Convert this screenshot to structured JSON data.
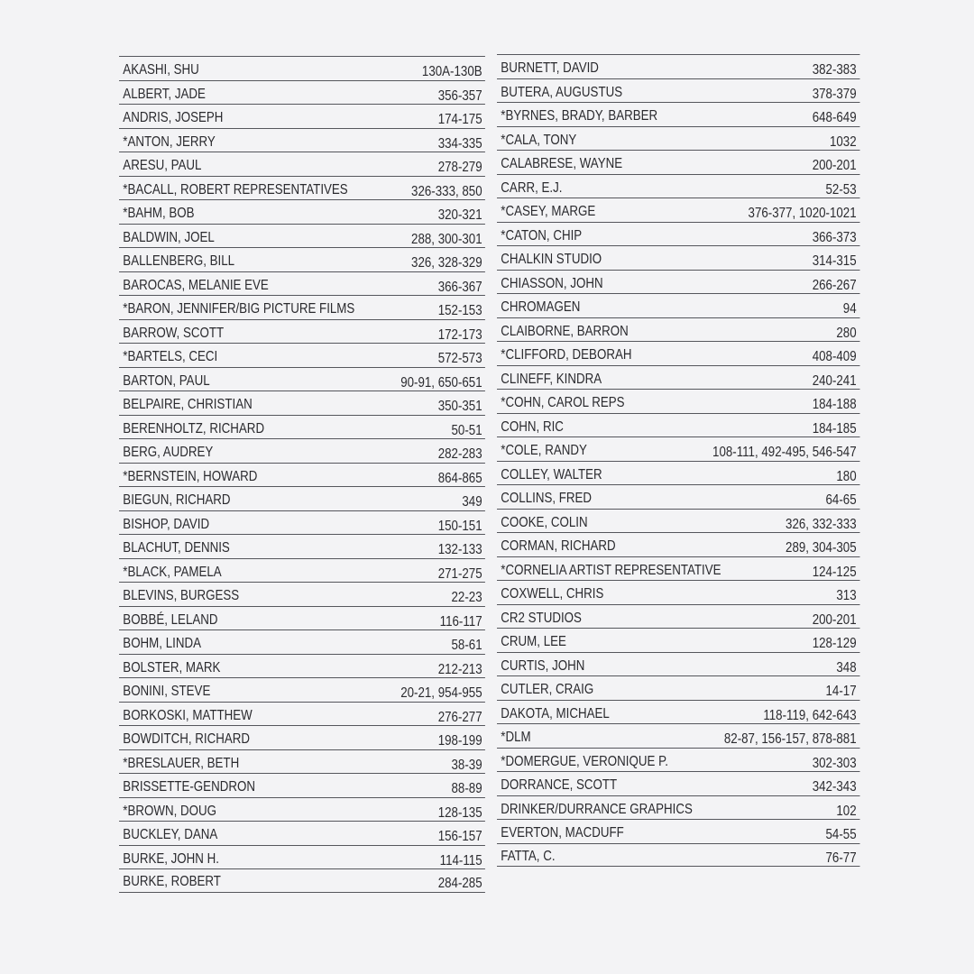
{
  "index": {
    "left": [
      {
        "name": "AKASHI, SHU",
        "pages": "130A-130B"
      },
      {
        "name": "ALBERT, JADE",
        "pages": "356-357"
      },
      {
        "name": "ANDRIS, JOSEPH",
        "pages": "174-175"
      },
      {
        "name": "*ANTON, JERRY",
        "pages": "334-335"
      },
      {
        "name": "ARESU, PAUL",
        "pages": "278-279"
      },
      {
        "name": "*BACALL, ROBERT REPRESENTATIVES",
        "pages": "326-333, 850"
      },
      {
        "name": "*BAHM, BOB",
        "pages": "320-321"
      },
      {
        "name": "BALDWIN, JOEL",
        "pages": "288, 300-301"
      },
      {
        "name": "BALLENBERG, BILL",
        "pages": "326, 328-329"
      },
      {
        "name": "BAROCAS, MELANIE EVE",
        "pages": "366-367"
      },
      {
        "name": "*BARON, JENNIFER/BIG PICTURE FILMS",
        "pages": "152-153"
      },
      {
        "name": "BARROW, SCOTT",
        "pages": "172-173"
      },
      {
        "name": "*BARTELS, CECI",
        "pages": "572-573"
      },
      {
        "name": "BARTON, PAUL",
        "pages": "90-91, 650-651"
      },
      {
        "name": "BELPAIRE, CHRISTIAN",
        "pages": "350-351"
      },
      {
        "name": "BERENHOLTZ, RICHARD",
        "pages": "50-51"
      },
      {
        "name": "BERG, AUDREY",
        "pages": "282-283"
      },
      {
        "name": "*BERNSTEIN, HOWARD",
        "pages": "864-865"
      },
      {
        "name": "BIEGUN, RICHARD",
        "pages": "349"
      },
      {
        "name": "BISHOP, DAVID",
        "pages": "150-151"
      },
      {
        "name": "BLACHUT, DENNIS",
        "pages": "132-133"
      },
      {
        "name": "*BLACK, PAMELA",
        "pages": "271-275"
      },
      {
        "name": "BLEVINS, BURGESS",
        "pages": "22-23"
      },
      {
        "name": "BOBBÉ, LELAND",
        "pages": "116-117"
      },
      {
        "name": "BOHM, LINDA",
        "pages": "58-61"
      },
      {
        "name": "BOLSTER, MARK",
        "pages": "212-213"
      },
      {
        "name": "BONINI, STEVE",
        "pages": "20-21, 954-955"
      },
      {
        "name": "BORKOSKI, MATTHEW",
        "pages": "276-277"
      },
      {
        "name": "BOWDITCH, RICHARD",
        "pages": "198-199"
      },
      {
        "name": "*BRESLAUER, BETH",
        "pages": "38-39"
      },
      {
        "name": "BRISSETTE-GENDRON",
        "pages": "88-89"
      },
      {
        "name": "*BROWN, DOUG",
        "pages": "128-135"
      },
      {
        "name": "BUCKLEY, DANA",
        "pages": "156-157"
      },
      {
        "name": "BURKE, JOHN H.",
        "pages": "114-115"
      },
      {
        "name": "BURKE, ROBERT",
        "pages": "284-285"
      }
    ],
    "right": [
      {
        "name": "BURNETT, DAVID",
        "pages": "382-383"
      },
      {
        "name": "BUTERA, AUGUSTUS",
        "pages": "378-379"
      },
      {
        "name": "*BYRNES, BRADY, BARBER",
        "pages": "648-649"
      },
      {
        "name": "*CALA, TONY",
        "pages": "1032"
      },
      {
        "name": "CALABRESE, WAYNE",
        "pages": "200-201"
      },
      {
        "name": "CARR, E.J.",
        "pages": "52-53"
      },
      {
        "name": "*CASEY, MARGE",
        "pages": "376-377, 1020-1021"
      },
      {
        "name": "*CATON, CHIP",
        "pages": "366-373"
      },
      {
        "name": "CHALKIN STUDIO",
        "pages": "314-315"
      },
      {
        "name": "CHIASSON, JOHN",
        "pages": "266-267"
      },
      {
        "name": "CHROMAGEN",
        "pages": "94"
      },
      {
        "name": "CLAIBORNE, BARRON",
        "pages": "280"
      },
      {
        "name": "*CLIFFORD, DEBORAH",
        "pages": "408-409"
      },
      {
        "name": "CLINEFF, KINDRA",
        "pages": "240-241"
      },
      {
        "name": "*COHN, CAROL REPS",
        "pages": "184-188"
      },
      {
        "name": "COHN, RIC",
        "pages": "184-185"
      },
      {
        "name": "*COLE, RANDY",
        "pages": "108-111, 492-495, 546-547"
      },
      {
        "name": "COLLEY, WALTER",
        "pages": "180"
      },
      {
        "name": "COLLINS, FRED",
        "pages": "64-65"
      },
      {
        "name": "COOKE, COLIN",
        "pages": "326, 332-333"
      },
      {
        "name": "CORMAN, RICHARD",
        "pages": "289, 304-305"
      },
      {
        "name": "*CORNELIA ARTIST REPRESENTATIVE",
        "pages": "124-125"
      },
      {
        "name": "COXWELL, CHRIS",
        "pages": "313"
      },
      {
        "name": "CR2 STUDIOS",
        "pages": "200-201"
      },
      {
        "name": "CRUM, LEE",
        "pages": "128-129"
      },
      {
        "name": "CURTIS, JOHN",
        "pages": "348"
      },
      {
        "name": "CUTLER, CRAIG",
        "pages": "14-17"
      },
      {
        "name": "DAKOTA, MICHAEL",
        "pages": "118-119, 642-643"
      },
      {
        "name": "*DLM",
        "pages": "82-87, 156-157, 878-881"
      },
      {
        "name": "*DOMERGUE, VERONIQUE P.",
        "pages": "302-303"
      },
      {
        "name": "DORRANCE, SCOTT",
        "pages": "342-343"
      },
      {
        "name": "DRINKER/DURRANCE GRAPHICS",
        "pages": "102"
      },
      {
        "name": "EVERTON, MACDUFF",
        "pages": "54-55"
      },
      {
        "name": "FATTA, C.",
        "pages": "76-77"
      }
    ]
  }
}
